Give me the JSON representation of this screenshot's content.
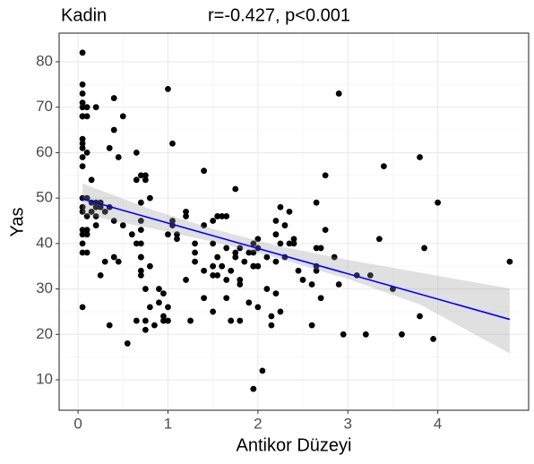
{
  "chart_data": {
    "type": "scatter",
    "title": "Kadin",
    "subtitle": "r=-0.427, p<0.001",
    "x_label": "Antikor Düzeyi",
    "y_label": "Yas",
    "color": "#000000",
    "fit_color": "#0000ff",
    "band_color": "#999999",
    "grid": true,
    "xlim": [
      -0.21,
      5.01
    ],
    "ylim": [
      3.3,
      86.3
    ],
    "xticks": [
      0,
      1,
      2,
      3,
      4
    ],
    "yticks": [
      10,
      20,
      30,
      40,
      50,
      60,
      70,
      80
    ],
    "x": [
      0.05,
      0.05,
      0.05,
      0.05,
      0.05,
      0.05,
      0.05,
      0.05,
      0.05,
      0.05,
      0.05,
      0.05,
      0.05,
      0.05,
      0.05,
      0.05,
      0.05,
      0.05,
      0.05,
      0.05,
      0.05,
      0.05,
      0.1,
      0.1,
      0.1,
      0.1,
      0.1,
      0.1,
      0.1,
      0.1,
      0.15,
      0.15,
      0.15,
      0.2,
      0.2,
      0.2,
      0.2,
      0.2,
      0.25,
      0.25,
      0.25,
      0.3,
      0.3,
      0.35,
      0.35,
      0.35,
      0.4,
      0.4,
      0.4,
      0.4,
      0.45,
      0.45,
      0.5,
      0.5,
      0.55,
      0.6,
      0.65,
      0.65,
      0.65,
      0.65,
      0.7,
      0.7,
      0.7,
      0.7,
      0.7,
      0.7,
      0.7,
      0.7,
      0.7,
      0.75,
      0.75,
      0.75,
      0.75,
      0.75,
      0.8,
      0.8,
      0.8,
      0.85,
      0.9,
      0.9,
      0.95,
      0.95,
      0.95,
      1.0,
      1.0,
      1.0,
      1.0,
      1.05,
      1.05,
      1.05,
      1.1,
      1.1,
      1.2,
      1.2,
      1.2,
      1.25,
      1.3,
      1.3,
      1.3,
      1.4,
      1.4,
      1.4,
      1.4,
      1.5,
      1.5,
      1.5,
      1.5,
      1.5,
      1.55,
      1.55,
      1.55,
      1.6,
      1.6,
      1.65,
      1.65,
      1.65,
      1.65,
      1.7,
      1.7,
      1.75,
      1.75,
      1.75,
      1.8,
      1.8,
      1.8,
      1.8,
      1.85,
      1.9,
      1.9,
      1.95,
      1.95,
      1.95,
      1.95,
      1.95,
      2.0,
      2.0,
      2.0,
      2.0,
      2.05,
      2.1,
      2.1,
      2.15,
      2.15,
      2.2,
      2.2,
      2.2,
      2.2,
      2.25,
      2.25,
      2.25,
      2.3,
      2.3,
      2.35,
      2.35,
      2.4,
      2.4,
      2.45,
      2.5,
      2.6,
      2.6,
      2.65,
      2.65,
      2.65,
      2.65,
      2.7,
      2.7,
      2.75,
      2.75,
      2.85,
      2.9,
      2.9,
      2.95,
      3.1,
      3.2,
      3.25,
      3.35,
      3.4,
      3.5,
      3.6,
      3.8,
      3.8,
      3.85,
      3.95,
      4.0,
      4.8
    ],
    "values": [
      82,
      75,
      73,
      71,
      70,
      68,
      68,
      68,
      63,
      62,
      61,
      59,
      57,
      48,
      48,
      47,
      43,
      42,
      40,
      38,
      26,
      50,
      70,
      68,
      60,
      50,
      46,
      43,
      42,
      38,
      54,
      49,
      47,
      70,
      49,
      48,
      46,
      44,
      33,
      48,
      49,
      47,
      36,
      61,
      22,
      48,
      72,
      65,
      45,
      37,
      36,
      59,
      68,
      44,
      18,
      42,
      60,
      40,
      54,
      23,
      55,
      49,
      45,
      43,
      40,
      37,
      37,
      33,
      34,
      55,
      54,
      30,
      21,
      23,
      50,
      35,
      26,
      22,
      27,
      30,
      24,
      29,
      23,
      74,
      42,
      23,
      26,
      44,
      45,
      62,
      42,
      41,
      46,
      47,
      32,
      23,
      40,
      36,
      38,
      56,
      44,
      34,
      28,
      45,
      40,
      33,
      35,
      25,
      46,
      37,
      33,
      46,
      35,
      46,
      39,
      28,
      32,
      23,
      34,
      52,
      37,
      38,
      23,
      39,
      32,
      31,
      36,
      38,
      27,
      8,
      35,
      40,
      35,
      38,
      41,
      26,
      39,
      35,
      12,
      37,
      30,
      24,
      22,
      36,
      29,
      45,
      42,
      25,
      48,
      40,
      44,
      37,
      47,
      40,
      41,
      40,
      34,
      32,
      31,
      22,
      49,
      39,
      34,
      35,
      39,
      28,
      55,
      43,
      37,
      73,
      31,
      20,
      33,
      20,
      33,
      41,
      57,
      30,
      20,
      59,
      24,
      39,
      19,
      49,
      36
    ],
    "fit": {
      "x": [
        0.05,
        4.8
      ],
      "values": [
        49.8,
        23.3
      ]
    },
    "band": {
      "x": [
        0.05,
        0.8,
        1.5,
        2.2,
        3.0,
        3.8,
        4.8
      ],
      "upper": [
        53.2,
        47.6,
        43.2,
        39.6,
        36.4,
        33.6,
        30.1
      ],
      "lower": [
        46.4,
        43.4,
        40.4,
        36.9,
        32.2,
        26.6,
        15.8
      ]
    }
  }
}
